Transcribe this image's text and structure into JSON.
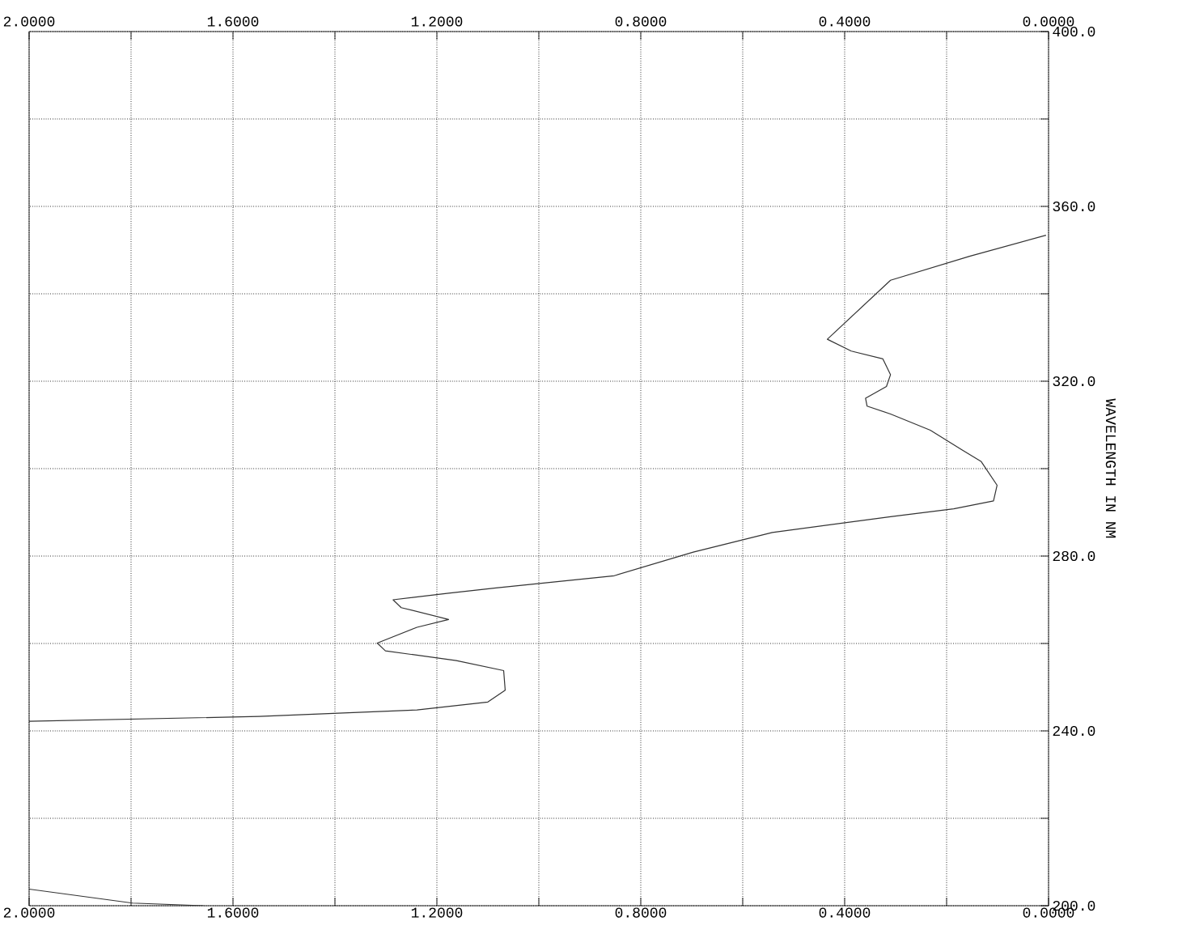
{
  "chart_data": {
    "type": "line",
    "ylabel": "WAVELENGTH IN NM",
    "grid": true,
    "marker": "none",
    "line_style": "solid",
    "xlim": [
      2,
      0
    ],
    "ylim": [
      200,
      400
    ],
    "xticks": [
      {
        "value": 2,
        "label": "2.0000"
      },
      {
        "value": 1.8,
        "label": null
      },
      {
        "value": 1.6,
        "label": "1.6000"
      },
      {
        "value": 1.4,
        "label": null
      },
      {
        "value": 1.2,
        "label": "1.2000"
      },
      {
        "value": 1,
        "label": null
      },
      {
        "value": 0.8,
        "label": "0.8000"
      },
      {
        "value": 0.6,
        "label": null
      },
      {
        "value": 0.4,
        "label": "0.4000"
      },
      {
        "value": 0.2,
        "label": null
      },
      {
        "value": 0,
        "label": "0.0000"
      }
    ],
    "x2lim": [
      2,
      0
    ],
    "x2ticks": [
      {
        "value": 2,
        "label": "2.0000"
      },
      {
        "value": 1.8,
        "label": null
      },
      {
        "value": 1.6,
        "label": "1.6000"
      },
      {
        "value": 1.4,
        "label": null
      },
      {
        "value": 1.2,
        "label": "1.2000"
      },
      {
        "value": 1,
        "label": null
      },
      {
        "value": 0.8,
        "label": "0.8000"
      },
      {
        "value": 0.6,
        "label": null
      },
      {
        "value": 0.4,
        "label": "0.4000"
      },
      {
        "value": 0.2,
        "label": null
      },
      {
        "value": 0,
        "label": "0.0000"
      }
    ],
    "yticks": [
      {
        "value": 200,
        "label": "200.0"
      },
      {
        "value": 220,
        "label": null
      },
      {
        "value": 240,
        "label": "240.0"
      },
      {
        "value": 260,
        "label": null
      },
      {
        "value": 280,
        "label": "280.0"
      },
      {
        "value": 300,
        "label": null
      },
      {
        "value": 320,
        "label": "320.0"
      },
      {
        "value": 340,
        "label": null
      },
      {
        "value": 360,
        "label": "360.0"
      },
      {
        "value": 380,
        "label": null
      },
      {
        "value": 400,
        "label": "400.0"
      }
    ],
    "series": [
      {
        "color": "#333333",
        "x": [
          0.005,
          0.155,
          0.31,
          0.434,
          0.387,
          0.325,
          0.31,
          0.318,
          0.359,
          0.356,
          0.31,
          0.232,
          0.17,
          0.132,
          0.101,
          0.108,
          0.186,
          0.31,
          0.542,
          0.697,
          0.852,
          1.084,
          1.177,
          1.286,
          1.27,
          1.177,
          1.239,
          1.317,
          1.301,
          1.162,
          1.069,
          1.066,
          1.1,
          1.239,
          1.549,
          2.0,
          null,
          2.0,
          1.797,
          1.658
        ],
        "values": [
          353.4,
          348.6,
          343.1,
          329.6,
          326.9,
          325.1,
          321.5,
          318.8,
          316.1,
          314.3,
          312.5,
          308.8,
          304.3,
          301.6,
          296.2,
          292.6,
          290.8,
          289.0,
          285.4,
          280.9,
          275.5,
          272.7,
          271.5,
          270.0,
          268.2,
          265.5,
          263.7,
          260.1,
          258.3,
          256.1,
          253.8,
          249.3,
          246.6,
          244.8,
          243.3,
          242.2,
          null,
          203.8,
          200.6,
          200.0
        ]
      }
    ]
  }
}
